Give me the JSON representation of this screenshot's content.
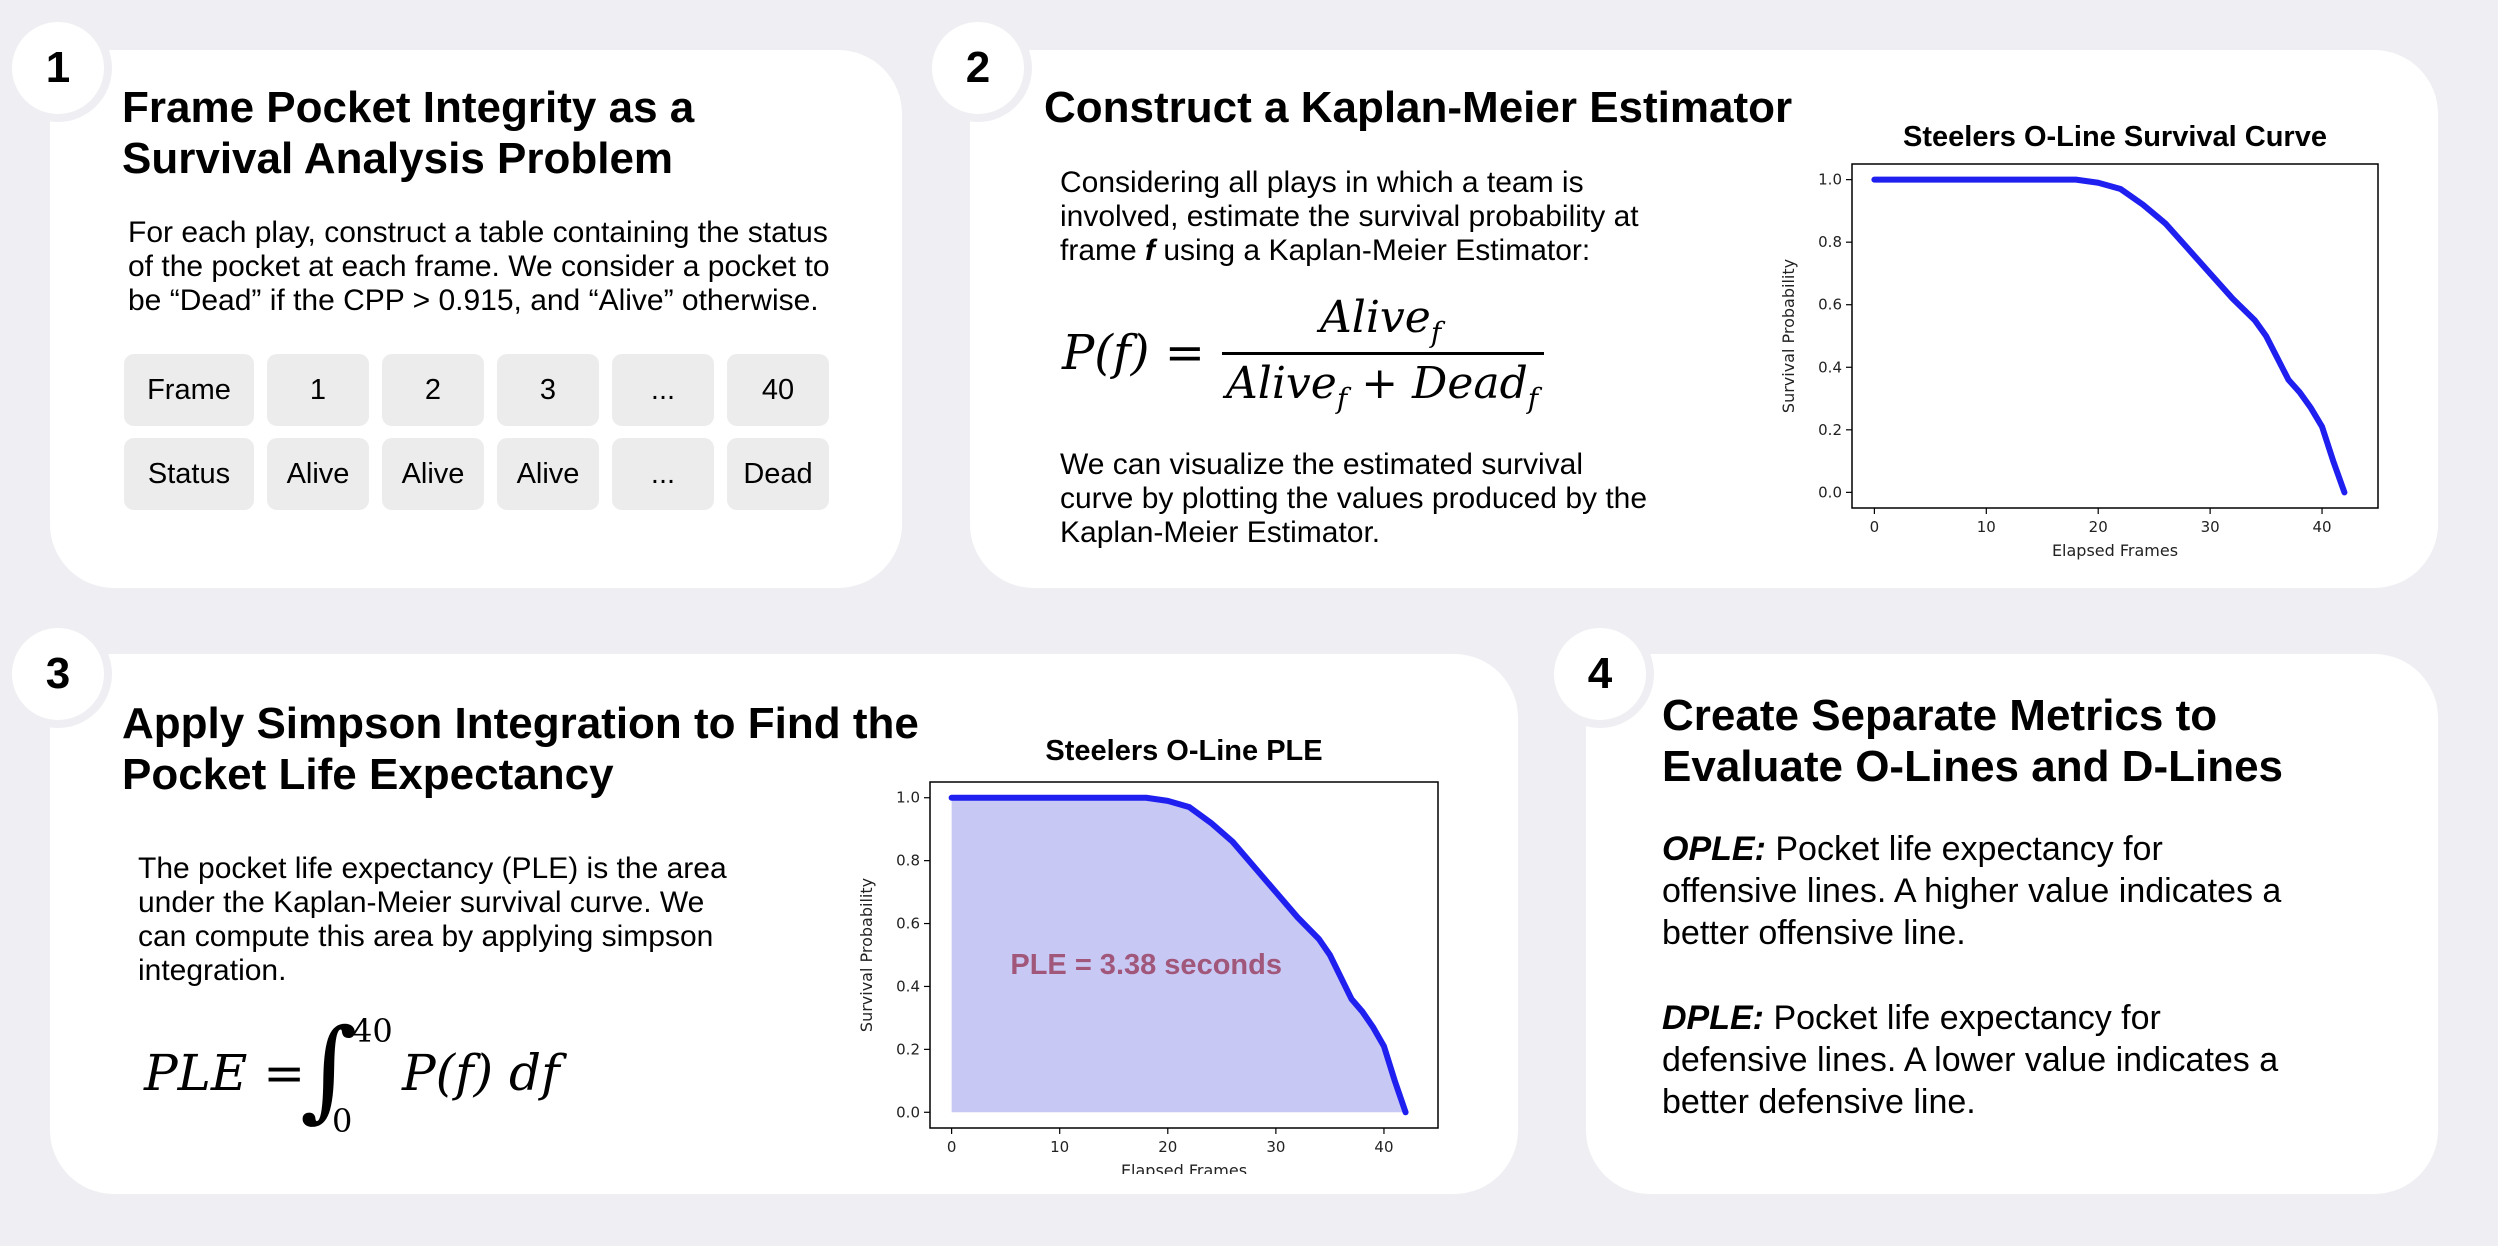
{
  "panel1": {
    "number": "1",
    "title_line1": "Frame Pocket Integrity as a",
    "title_line2": "Survival Analysis Problem",
    "desc_line1": "For each play, construct a table containing the status",
    "desc_line2": "of the pocket at each frame. We consider a pocket to",
    "desc_line3": "be “Dead” if the CPP > 0.915, and “Alive” otherwise.",
    "table": {
      "row1": [
        "Frame",
        "1",
        "2",
        "3",
        "...",
        "40"
      ],
      "row2": [
        "Status",
        "Alive",
        "Alive",
        "Alive",
        "...",
        "Dead"
      ]
    }
  },
  "panel2": {
    "number": "2",
    "title": "Construct a Kaplan-Meier Estimator",
    "desc_line1": "Considering all plays in which a team is",
    "desc_line2": "involved, estimate the survival probability at",
    "desc_line3_pre": "frame ",
    "desc_line3_var": "f",
    "desc_line3_post": " using a Kaplan-Meier Estimator:",
    "formula_lhs": "P(f) =",
    "formula_num": "Alive",
    "formula_den_a": "Alive",
    "formula_den_b": "Dead",
    "formula_sub": "f",
    "desc2_line1": "We can visualize the estimated survival",
    "desc2_line2": "curve by plotting the values produced by the",
    "desc2_line3": "Kaplan-Meier Estimator."
  },
  "panel3": {
    "number": "3",
    "title_line1": "Apply Simpson Integration to Find the",
    "title_line2": "Pocket Life Expectancy",
    "desc_line1": "The pocket life expectancy (PLE) is the area",
    "desc_line2": "under the Kaplan-Meier survival curve. We",
    "desc_line3": "can compute this area by applying simpson",
    "desc_line4": "integration.",
    "formula_lhs": "PLE =",
    "formula_upper": "40",
    "formula_lower": "0",
    "formula_rhs": "P(f) df"
  },
  "panel4": {
    "number": "4",
    "title_line1": "Create Separate Metrics to",
    "title_line2": "Evaluate O-Lines and D-Lines",
    "opl_label": "OPLE:",
    "opl_line1": " Pocket life expectancy for",
    "opl_line2": "offensive lines. A higher value indicates a",
    "opl_line3": "better offensive line.",
    "dpl_label": "DPLE:",
    "dpl_line1": " Pocket life expectancy for",
    "dpl_line2": "defensive lines. A lower value indicates a",
    "dpl_line3": "better defensive line."
  },
  "colors": {
    "curve": "#1f1ff0",
    "fill": "#c8c8f5",
    "annotation": "#a0577a",
    "cell": "#ececec",
    "background": "#efeff3"
  },
  "chart_data": [
    {
      "type": "line",
      "title": "Steelers O-Line Survival Curve",
      "xlabel": "Elapsed Frames",
      "ylabel": "Survival Probability",
      "xlim": [
        -2,
        45
      ],
      "ylim": [
        -0.05,
        1.05
      ],
      "xticks": [
        "0",
        "10",
        "20",
        "30",
        "40"
      ],
      "yticks": [
        "0.0",
        "0.2",
        "0.4",
        "0.6",
        "0.8",
        "1.0"
      ],
      "x": [
        0,
        5,
        10,
        15,
        18,
        20,
        22,
        24,
        26,
        28,
        30,
        32,
        34,
        35,
        36,
        37,
        38,
        39,
        40,
        41,
        42
      ],
      "values": [
        1.0,
        1.0,
        1.0,
        1.0,
        1.0,
        0.99,
        0.97,
        0.92,
        0.86,
        0.78,
        0.7,
        0.62,
        0.55,
        0.5,
        0.43,
        0.36,
        0.32,
        0.27,
        0.21,
        0.1,
        0.0
      ]
    },
    {
      "type": "area",
      "title": "Steelers O-Line PLE",
      "xlabel": "Elapsed Frames",
      "ylabel": "Survival Probability",
      "annotation": "PLE = 3.38 seconds",
      "xlim": [
        -2,
        45
      ],
      "ylim": [
        -0.05,
        1.05
      ],
      "xticks": [
        "0",
        "10",
        "20",
        "30",
        "40"
      ],
      "yticks": [
        "0.0",
        "0.2",
        "0.4",
        "0.6",
        "0.8",
        "1.0"
      ],
      "x": [
        0,
        5,
        10,
        15,
        18,
        20,
        22,
        24,
        26,
        28,
        30,
        32,
        34,
        35,
        36,
        37,
        38,
        39,
        40,
        41,
        42
      ],
      "values": [
        1.0,
        1.0,
        1.0,
        1.0,
        1.0,
        0.99,
        0.97,
        0.92,
        0.86,
        0.78,
        0.7,
        0.62,
        0.55,
        0.5,
        0.43,
        0.36,
        0.32,
        0.27,
        0.21,
        0.1,
        0.0
      ]
    }
  ]
}
